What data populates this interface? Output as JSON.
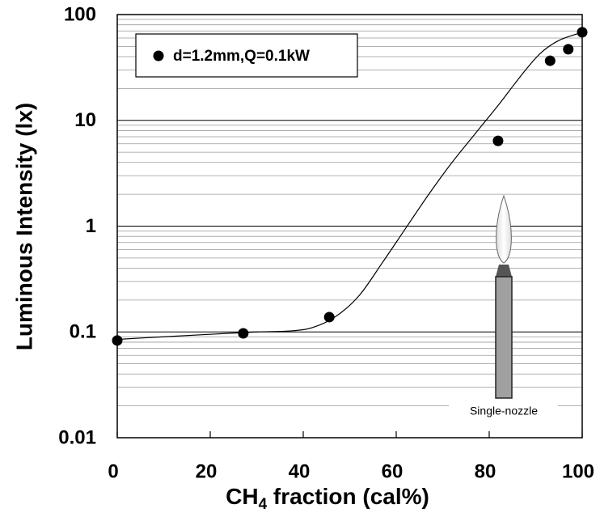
{
  "chart_data": {
    "type": "scatter",
    "xlabel": "CH4 fraction (cal%)",
    "ylabel": "Luminous Intensity (lx)",
    "annotation": "Single-nozzle",
    "xlim": [
      0,
      100
    ],
    "xticks": [
      0,
      20,
      40,
      60,
      80,
      100
    ],
    "ylim": [
      0.01,
      100
    ],
    "yticks": [
      0.01,
      0.1,
      1,
      10,
      100
    ],
    "yminorticks": [
      0.02,
      0.03,
      0.04,
      0.05,
      0.06,
      0.07,
      0.08,
      0.09,
      0.2,
      0.3,
      0.4,
      0.5,
      0.6,
      0.7,
      0.8,
      0.9,
      2,
      3,
      4,
      5,
      6,
      7,
      8,
      9,
      20,
      30,
      40,
      50,
      60,
      70,
      80,
      90
    ],
    "ylog": true,
    "grid": true,
    "legend": "top-left",
    "series": [
      {
        "name": "d=1.2mm,Q=0.1kW",
        "color": "#000000",
        "x": [
          0,
          27.1,
          45.6,
          81.9,
          93.1,
          97,
          100
        ],
        "values": [
          0.083,
          0.097,
          0.138,
          6.4,
          36.6,
          47,
          68
        ]
      }
    ],
    "fit": {
      "color": "#000000",
      "x": [
        0,
        10,
        20,
        30,
        37,
        42,
        47,
        52,
        57,
        62,
        67,
        72,
        77,
        82,
        87,
        91,
        95,
        100
      ],
      "values": [
        0.085,
        0.09,
        0.095,
        0.1,
        0.102,
        0.11,
        0.14,
        0.22,
        0.45,
        0.95,
        2.0,
        4.0,
        7.5,
        14,
        27,
        43,
        57,
        68
      ]
    }
  }
}
